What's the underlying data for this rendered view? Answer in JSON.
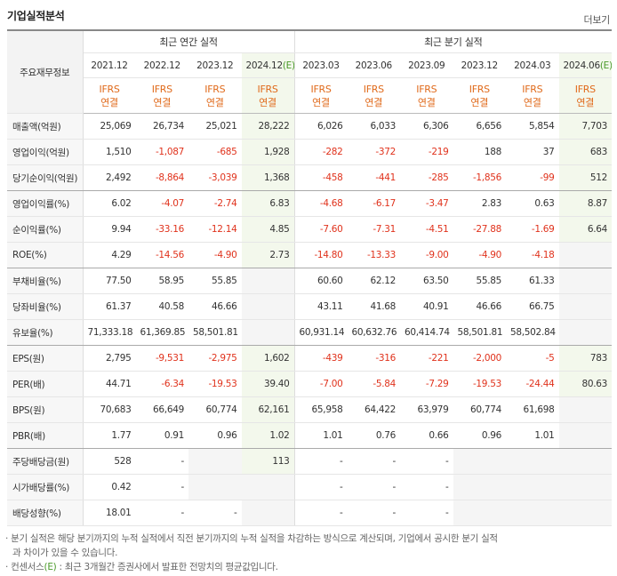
{
  "header": {
    "title": "기업실적분석",
    "more": "더보기"
  },
  "table": {
    "corner": "주요재무정보",
    "annual": {
      "label": "최근 연간 실적",
      "periods": [
        {
          "date": "2021.12",
          "standard": "IFRS",
          "basis": "연결"
        },
        {
          "date": "2022.12",
          "standard": "IFRS",
          "basis": "연결"
        },
        {
          "date": "2023.12",
          "standard": "IFRS",
          "basis": "연결"
        },
        {
          "date": "2024.12",
          "estimate": "(E)",
          "standard": "IFRS",
          "basis": "연결"
        }
      ]
    },
    "quarterly": {
      "label": "최근 분기 실적",
      "periods": [
        {
          "date": "2023.03",
          "standard": "IFRS",
          "basis": "연결"
        },
        {
          "date": "2023.06",
          "standard": "IFRS",
          "basis": "연결"
        },
        {
          "date": "2023.09",
          "standard": "IFRS",
          "basis": "연결"
        },
        {
          "date": "2023.12",
          "standard": "IFRS",
          "basis": "연결"
        },
        {
          "date": "2024.03",
          "standard": "IFRS",
          "basis": "연결"
        },
        {
          "date": "2024.06",
          "estimate": "(E)",
          "standard": "IFRS",
          "basis": "연결"
        }
      ]
    },
    "rows": [
      {
        "label": "매출액(억원)",
        "values": [
          "25,069",
          "26,734",
          "25,021",
          "28,222",
          "6,026",
          "6,033",
          "6,306",
          "6,656",
          "5,854",
          "7,703"
        ]
      },
      {
        "label": "영업이익(억원)",
        "values": [
          "1,510",
          "-1,087",
          "-685",
          "1,928",
          "-282",
          "-372",
          "-219",
          "188",
          "37",
          "683"
        ]
      },
      {
        "label": "당기순이익(억원)",
        "values": [
          "2,492",
          "-8,864",
          "-3,039",
          "1,368",
          "-458",
          "-441",
          "-285",
          "-1,856",
          "-99",
          "512"
        ]
      },
      {
        "label": "영업이익률(%)",
        "values": [
          "6.02",
          "-4.07",
          "-2.74",
          "6.83",
          "-4.68",
          "-6.17",
          "-3.47",
          "2.83",
          "0.63",
          "8.87"
        ]
      },
      {
        "label": "순이익률(%)",
        "values": [
          "9.94",
          "-33.16",
          "-12.14",
          "4.85",
          "-7.60",
          "-7.31",
          "-4.51",
          "-27.88",
          "-1.69",
          "6.64"
        ]
      },
      {
        "label": "ROE(%)",
        "values": [
          "4.29",
          "-14.56",
          "-4.90",
          "2.73",
          "-14.80",
          "-13.33",
          "-9.00",
          "-4.90",
          "-4.18",
          null
        ]
      },
      {
        "label": "부채비율(%)",
        "values": [
          "77.50",
          "58.95",
          "55.85",
          null,
          "60.60",
          "62.12",
          "63.50",
          "55.85",
          "61.33",
          null
        ]
      },
      {
        "label": "당좌비율(%)",
        "values": [
          "61.37",
          "40.58",
          "46.66",
          null,
          "43.11",
          "41.68",
          "40.91",
          "46.66",
          "66.75",
          null
        ]
      },
      {
        "label": "유보율(%)",
        "values": [
          "71,333.18",
          "61,369.85",
          "58,501.81",
          null,
          "60,931.14",
          "60,632.76",
          "60,414.74",
          "58,501.81",
          "58,502.84",
          null
        ]
      },
      {
        "label": "EPS(원)",
        "values": [
          "2,795",
          "-9,531",
          "-2,975",
          "1,602",
          "-439",
          "-316",
          "-221",
          "-2,000",
          "-5",
          "783"
        ]
      },
      {
        "label": "PER(배)",
        "values": [
          "44.71",
          "-6.34",
          "-19.53",
          "39.40",
          "-7.00",
          "-5.84",
          "-7.29",
          "-19.53",
          "-24.44",
          "80.63"
        ]
      },
      {
        "label": "BPS(원)",
        "values": [
          "70,683",
          "66,649",
          "60,774",
          "62,161",
          "65,958",
          "64,422",
          "63,979",
          "60,774",
          "61,698",
          null
        ]
      },
      {
        "label": "PBR(배)",
        "values": [
          "1.77",
          "0.91",
          "0.96",
          "1.02",
          "1.01",
          "0.76",
          "0.66",
          "0.96",
          "1.01",
          null
        ]
      },
      {
        "label": "주당배당금(원)",
        "values": [
          "528",
          "-",
          null,
          "113",
          "-",
          "-",
          "-",
          null,
          null,
          null
        ]
      },
      {
        "label": "시가배당률(%)",
        "values": [
          "0.42",
          "-",
          null,
          null,
          "-",
          "-",
          "-",
          null,
          null,
          null
        ]
      },
      {
        "label": "배당성향(%)",
        "values": [
          "18.01",
          "-",
          "-",
          null,
          "-",
          "-",
          "-",
          null,
          null,
          null
        ]
      }
    ]
  },
  "notes": [
    {
      "text": "분기 실적은 해당 분기까지의 누적 실적에서 직전 분기까지의 누적 실적을 차감하는 방식으로 계산되며, 기업에서 공시한 분기 실적과 차이가 있을 수 있습니다."
    },
    {
      "parts": [
        "컨센서스",
        "(E)",
        " : 최근 3개월간 증권사에서 발표한 전망치의 평균값입니다."
      ]
    }
  ]
}
